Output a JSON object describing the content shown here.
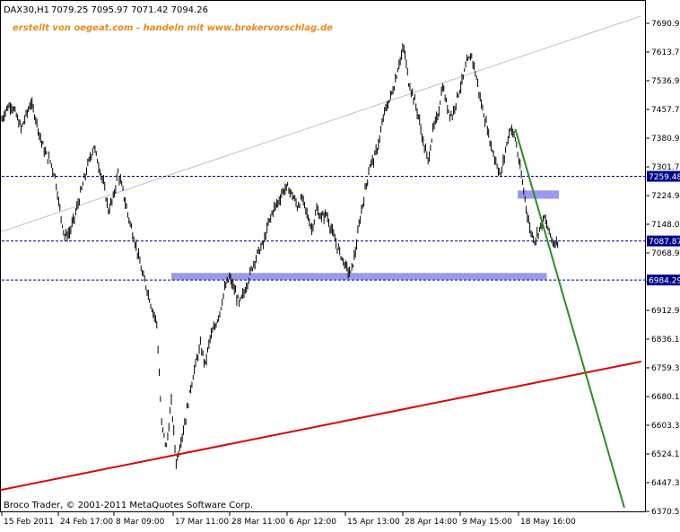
{
  "header": {
    "symbol_text": "DAX30,H1",
    "ohlc_text": "7079.25 7095.97 7071.42 7094.26",
    "watermark": "erstellt von oegeat.com - handeln mit www.brokervorschlag.de",
    "copyright": "Broco Trader, © 2001-2011 MetaQuotes Software Corp."
  },
  "colors": {
    "background": "#ffffff",
    "border": "#000000",
    "candles": "#000000",
    "watermark": "#e8891c",
    "hline": "#00008b",
    "price_box_bg": "#00008b",
    "price_box_text": "#ffffff",
    "support_zone": "#9999ee",
    "upper_channel_line": "#c0c0c0",
    "red_trendline": "#e00000",
    "green_trendline": "#2e8b2e"
  },
  "chart_data": {
    "type": "candlestick",
    "timeframe": "H1",
    "instrument": "DAX30",
    "x_tick_labels": [
      "15 Feb 2011",
      "24 Feb 17:00",
      "8 Mar 09:00",
      "17 Mar 11:00",
      "28 Mar 11:00",
      "6 Apr 12:00",
      "15 Apr 13:00",
      "28 Apr 14:00",
      "9 May 15:00",
      "18 May 16:00"
    ],
    "y_tick_labels": [
      "7690.90",
      "7613.70",
      "7536.90",
      "7457.70",
      "7380.90",
      "7301.70",
      "7224.90",
      "7148.00",
      "7068.90",
      "6991.90",
      "6912.90",
      "6836.10",
      "6759.30",
      "6680.10",
      "6603.30",
      "6524.10",
      "6447.30",
      "6370.50"
    ],
    "ylim": [
      6368,
      7725
    ],
    "price_path": [
      [
        0,
        7410
      ],
      [
        2,
        7440
      ],
      [
        4,
        7450
      ],
      [
        6,
        7420
      ],
      [
        8,
        7385
      ],
      [
        10,
        7420
      ],
      [
        12,
        7455
      ],
      [
        14,
        7415
      ],
      [
        16,
        7360
      ],
      [
        18,
        7320
      ],
      [
        20,
        7300
      ],
      [
        22,
        7260
      ],
      [
        24,
        7170
      ],
      [
        26,
        7100
      ],
      [
        28,
        7110
      ],
      [
        30,
        7150
      ],
      [
        32,
        7200
      ],
      [
        34,
        7250
      ],
      [
        36,
        7300
      ],
      [
        38,
        7340
      ],
      [
        40,
        7290
      ],
      [
        42,
        7240
      ],
      [
        44,
        7170
      ],
      [
        46,
        7200
      ],
      [
        48,
        7270
      ],
      [
        50,
        7220
      ],
      [
        52,
        7160
      ],
      [
        54,
        7110
      ],
      [
        56,
        7060
      ],
      [
        58,
        7000
      ],
      [
        60,
        6960
      ],
      [
        62,
        6910
      ],
      [
        64,
        6870
      ],
      [
        66,
        6600
      ],
      [
        68,
        6540
      ],
      [
        70,
        6660
      ],
      [
        72,
        6500
      ],
      [
        74,
        6560
      ],
      [
        76,
        6620
      ],
      [
        78,
        6700
      ],
      [
        80,
        6760
      ],
      [
        82,
        6810
      ],
      [
        84,
        6760
      ],
      [
        86,
        6830
      ],
      [
        88,
        6860
      ],
      [
        90,
        6900
      ],
      [
        92,
        6960
      ],
      [
        94,
        6990
      ],
      [
        96,
        6960
      ],
      [
        98,
        6920
      ],
      [
        100,
        6950
      ],
      [
        102,
        6990
      ],
      [
        104,
        7030
      ],
      [
        106,
        7060
      ],
      [
        108,
        7080
      ],
      [
        110,
        7130
      ],
      [
        112,
        7170
      ],
      [
        114,
        7190
      ],
      [
        116,
        7220
      ],
      [
        118,
        7230
      ],
      [
        120,
        7210
      ],
      [
        122,
        7180
      ],
      [
        124,
        7200
      ],
      [
        126,
        7160
      ],
      [
        128,
        7120
      ],
      [
        130,
        7170
      ],
      [
        132,
        7150
      ],
      [
        134,
        7160
      ],
      [
        136,
        7120
      ],
      [
        138,
        7080
      ],
      [
        140,
        7050
      ],
      [
        142,
        7020
      ],
      [
        144,
        7000
      ],
      [
        146,
        7060
      ],
      [
        148,
        7150
      ],
      [
        150,
        7220
      ],
      [
        152,
        7290
      ],
      [
        154,
        7310
      ],
      [
        156,
        7360
      ],
      [
        158,
        7430
      ],
      [
        160,
        7460
      ],
      [
        162,
        7500
      ],
      [
        164,
        7560
      ],
      [
        166,
        7600
      ],
      [
        168,
        7510
      ],
      [
        170,
        7470
      ],
      [
        172,
        7420
      ],
      [
        174,
        7350
      ],
      [
        176,
        7300
      ],
      [
        178,
        7380
      ],
      [
        180,
        7420
      ],
      [
        182,
        7500
      ],
      [
        184,
        7440
      ],
      [
        186,
        7420
      ],
      [
        188,
        7470
      ],
      [
        190,
        7510
      ],
      [
        192,
        7560
      ],
      [
        194,
        7580
      ],
      [
        196,
        7520
      ],
      [
        198,
        7450
      ],
      [
        200,
        7400
      ],
      [
        202,
        7340
      ],
      [
        204,
        7300
      ],
      [
        206,
        7260
      ],
      [
        208,
        7330
      ],
      [
        210,
        7390
      ],
      [
        212,
        7360
      ],
      [
        214,
        7280
      ],
      [
        216,
        7200
      ],
      [
        218,
        7120
      ],
      [
        220,
        7090
      ],
      [
        222,
        7120
      ],
      [
        224,
        7150
      ],
      [
        226,
        7110
      ],
      [
        228,
        7080
      ],
      [
        230,
        7094
      ]
    ],
    "horizontal_lines": [
      7259.48,
      7087.87,
      6984.29
    ],
    "price_labels": [
      "7259.48",
      "7087.87",
      "6984.29"
    ],
    "zones": [
      {
        "name": "upper-resistance-zone",
        "x_from": 213,
        "x_to": 230,
        "y_from": 7200,
        "y_to": 7222
      },
      {
        "name": "lower-support-zone",
        "x_from": 70,
        "x_to": 225,
        "y_from": 6985,
        "y_to": 7003
      }
    ],
    "trendlines": [
      {
        "name": "red-support-trendline",
        "x1": -30,
        "y1": 6389,
        "x2": 264,
        "y2": 6768
      },
      {
        "name": "upper-channel-line",
        "x1": -30,
        "y1": 7048,
        "x2": 264,
        "y2": 7685
      },
      {
        "name": "green-downtrend-line",
        "x1": 212,
        "y1": 7385,
        "x2": 257,
        "y2": 6380
      }
    ],
    "grid": false
  }
}
